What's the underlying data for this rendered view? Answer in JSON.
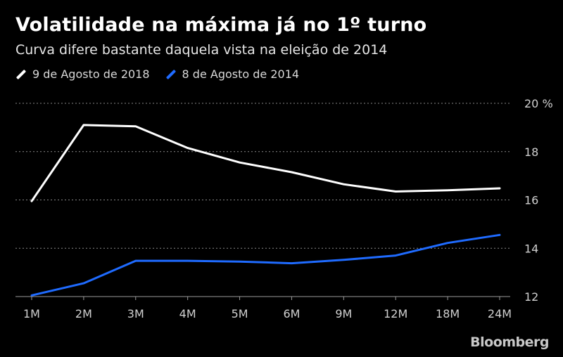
{
  "title": "Volatilidade na máxima já no 1º turno",
  "subtitle": "Curva difere bastante daquela vista na eleição de 2014",
  "legend": [
    {
      "label": "9 de Agosto de 2018",
      "color": "#ffffff"
    },
    {
      "label": "8 de Agosto de 2014",
      "color": "#1f6bff"
    }
  ],
  "brand": "Bloomberg",
  "chart_data": {
    "type": "line",
    "categories": [
      "1M",
      "2M",
      "3M",
      "4M",
      "5M",
      "6M",
      "9M",
      "12M",
      "18M",
      "24M"
    ],
    "series": [
      {
        "name": "9 de Agosto de 2018",
        "color": "#ffffff",
        "values": [
          15.95,
          19.1,
          19.05,
          18.15,
          17.55,
          17.15,
          16.65,
          16.35,
          16.4,
          16.48
        ]
      },
      {
        "name": "8 de Agosto de 2014",
        "color": "#1f6bff",
        "values": [
          12.05,
          12.55,
          13.48,
          13.48,
          13.45,
          13.38,
          13.52,
          13.7,
          14.22,
          14.55
        ]
      }
    ],
    "ylim": [
      12,
      20
    ],
    "yticks": [
      12,
      14,
      16,
      18,
      20
    ],
    "ytick_labels": [
      "12",
      "14",
      "16",
      "18",
      "20 %"
    ],
    "grid": true
  }
}
